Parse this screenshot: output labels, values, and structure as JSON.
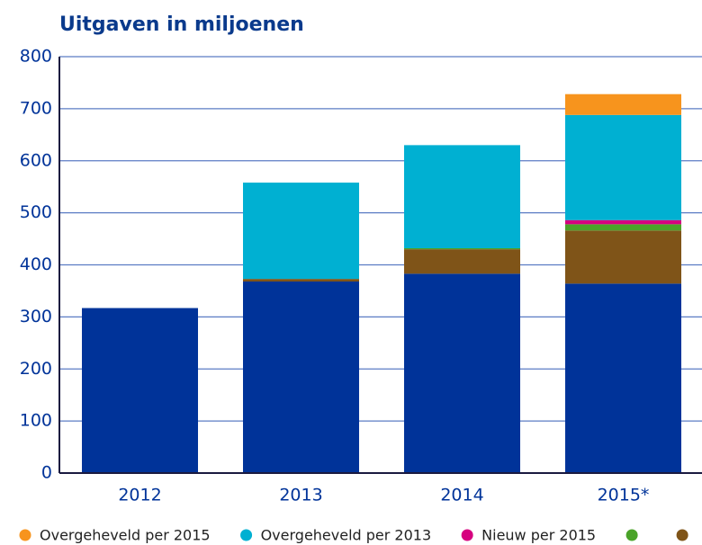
{
  "chart_data": {
    "type": "stacked_bar",
    "title": "Uitgaven in miljoenen",
    "categories": [
      "2012",
      "2013",
      "2014",
      "2015*"
    ],
    "series": [
      {
        "name": "Overgeheveld per 2015",
        "color": "#f7941d",
        "values": [
          null,
          null,
          null,
          40
        ]
      },
      {
        "name": "Overgeheveld per 2013",
        "color": "#00b0d2",
        "values": [
          null,
          185,
          198,
          202
        ]
      },
      {
        "name": "Nieuw per 2015",
        "color": "#d6007f",
        "values": [
          null,
          null,
          null,
          8
        ]
      },
      {
        "name": null,
        "color": "#4aa329",
        "values": [
          null,
          null,
          2,
          12
        ]
      },
      {
        "name": null,
        "color": "#7f5418",
        "values": [
          null,
          5,
          47,
          102
        ]
      },
      {
        "name": null,
        "color": "#003399",
        "values": [
          317,
          368,
          383,
          364
        ]
      }
    ],
    "ylim": [
      0,
      800
    ],
    "yticks": [
      0,
      100,
      200,
      300,
      400,
      500,
      600,
      700,
      800
    ],
    "grid": true
  }
}
